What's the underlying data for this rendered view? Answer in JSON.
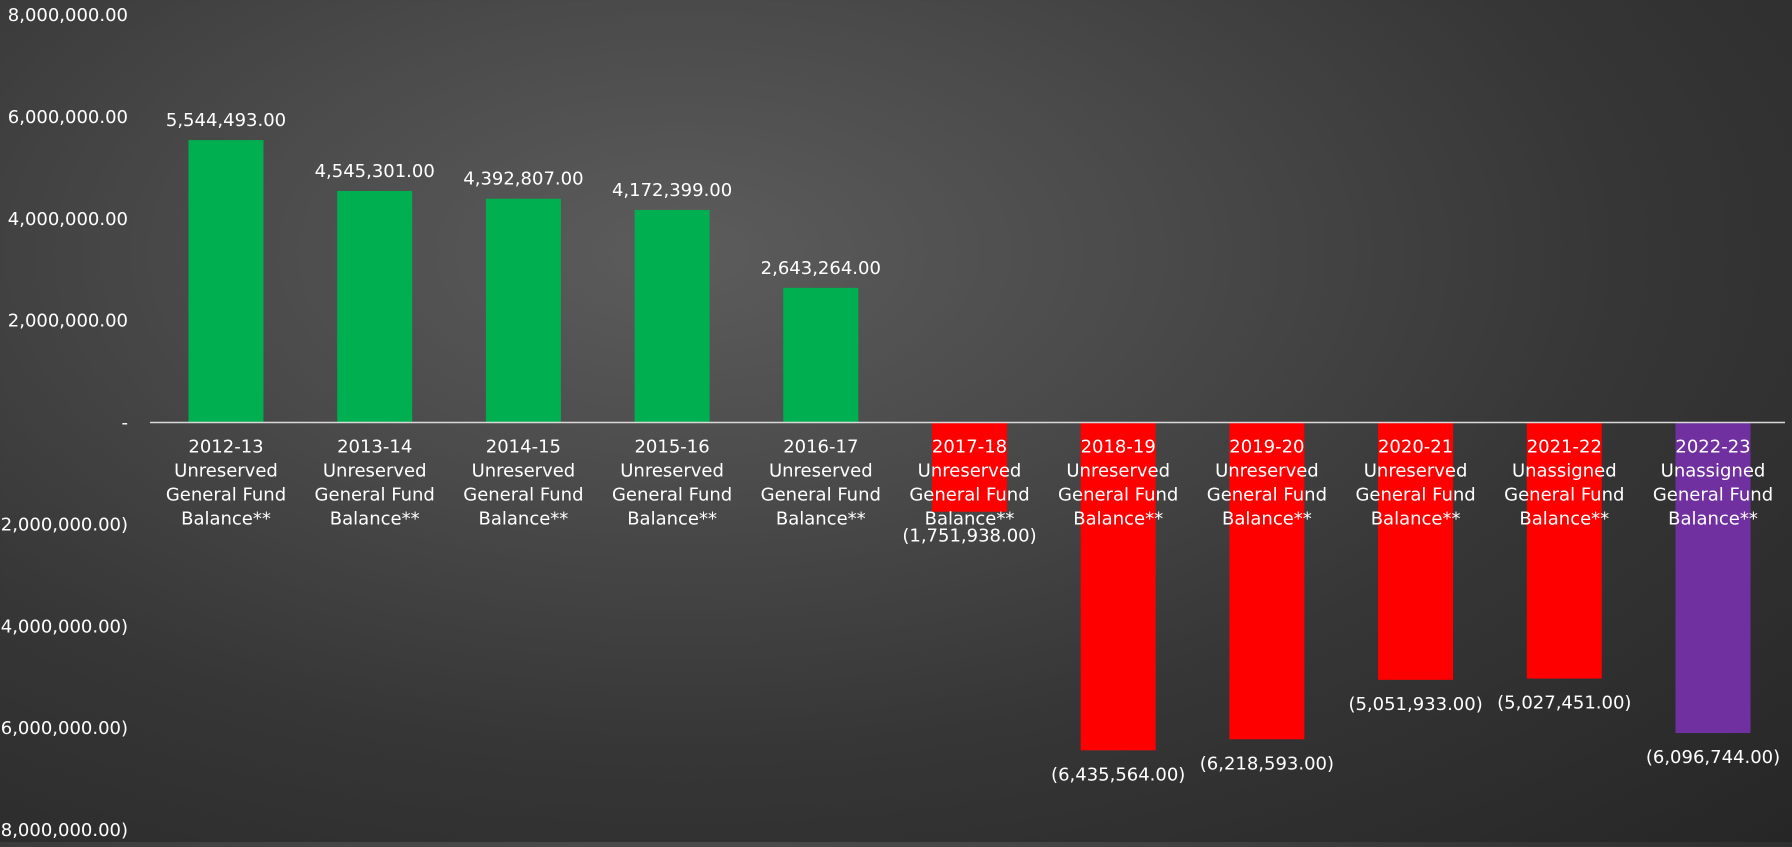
{
  "chart_data": {
    "type": "bar",
    "categories": [
      [
        "2012-13",
        "Unreserved",
        "General Fund",
        "Balance**"
      ],
      [
        "2013-14",
        "Unreserved",
        "General Fund",
        "Balance**"
      ],
      [
        "2014-15",
        "Unreserved",
        "General Fund",
        "Balance**"
      ],
      [
        "2015-16",
        "Unreserved",
        "General Fund",
        "Balance**"
      ],
      [
        "2016-17",
        "Unreserved",
        "General Fund",
        "Balance**"
      ],
      [
        "2017-18",
        "Unreserved",
        "General Fund",
        "Balance**"
      ],
      [
        "2018-19",
        "Unreserved",
        "General Fund",
        "Balance**"
      ],
      [
        "2019-20",
        "Unreserved",
        "General Fund",
        "Balance**"
      ],
      [
        "2020-21",
        "Unreserved",
        "General Fund",
        "Balance**"
      ],
      [
        "2021-22",
        "Unassigned",
        "General Fund",
        "Balance**"
      ],
      [
        "2022-23",
        "Unassigned",
        "General Fund",
        "Balance**"
      ]
    ],
    "values": [
      5544493,
      4545301,
      4392807,
      4172399,
      2643264,
      -1751938,
      -6435564,
      -6218593,
      -5051933,
      -5027451,
      -6096744
    ],
    "data_labels": [
      "5,544,493.00",
      "4,545,301.00",
      "4,392,807.00",
      "4,172,399.00",
      "2,643,264.00",
      "(1,751,938.00)",
      "(6,435,564.00)",
      "(6,218,593.00)",
      "(5,051,933.00)",
      "(5,027,451.00)",
      "(6,096,744.00)"
    ],
    "bar_colors": [
      "#00b050",
      "#00b050",
      "#00b050",
      "#00b050",
      "#00b050",
      "#ff0000",
      "#ff0000",
      "#ff0000",
      "#ff0000",
      "#ff0000",
      "#7030a0"
    ],
    "ylim": [
      -8000000,
      8000000
    ],
    "yticks": [
      8000000,
      6000000,
      4000000,
      2000000,
      0,
      -2000000,
      -4000000,
      -6000000,
      -8000000
    ],
    "ytick_labels": [
      "8,000,000.00",
      "6,000,000.00",
      "4,000,000.00",
      "2,000,000.00",
      "-",
      "(2,000,000.00)",
      "(4,000,000.00)",
      "(6,000,000.00)",
      "(8,000,000.00)"
    ],
    "grid": false,
    "title": "",
    "xlabel": "",
    "ylabel": ""
  },
  "colors": {
    "axis_line": "#d9d9d9",
    "text": "#ffffff"
  }
}
